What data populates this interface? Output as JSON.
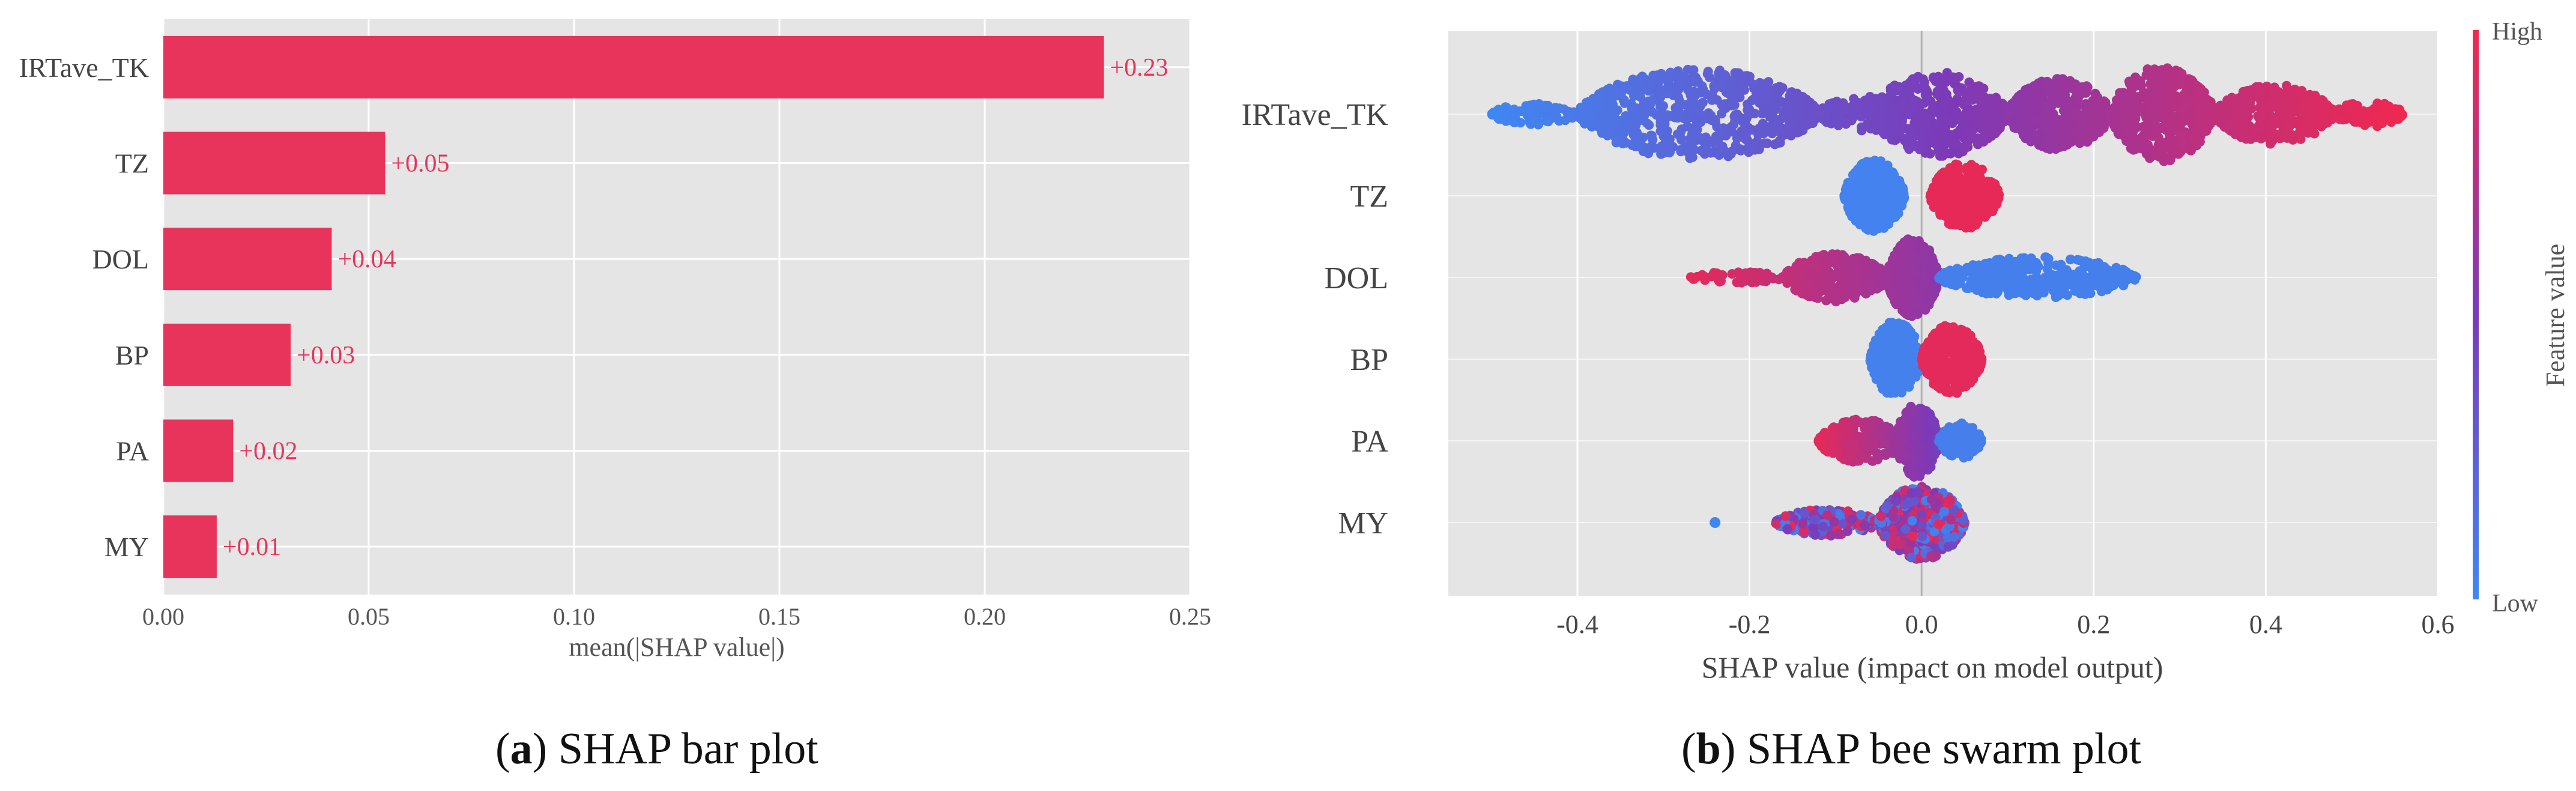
{
  "chart_data": [
    {
      "type": "bar",
      "orientation": "horizontal",
      "categories": [
        "IRTave_TK",
        "TZ",
        "DOL",
        "BP",
        "PA",
        "MY"
      ],
      "values": [
        0.229,
        0.054,
        0.041,
        0.031,
        0.017,
        0.013
      ],
      "value_labels": [
        "+0.23",
        "+0.05",
        "+0.04",
        "+0.03",
        "+0.02",
        "+0.01"
      ],
      "xlabel": "mean(|SHAP value|)",
      "ylabel": "",
      "xlim": [
        0,
        0.25
      ],
      "xticks": [
        0.0,
        0.05,
        0.1,
        0.15,
        0.2,
        0.25
      ],
      "xtick_labels": [
        "0.00",
        "0.05",
        "0.10",
        "0.15",
        "0.20",
        "0.25"
      ],
      "grid": true,
      "bar_color": "#e8345a",
      "background": "#e5e5e5",
      "caption_letter": "a",
      "caption_open": "(",
      "caption_close": ")",
      "caption_text": " SHAP bar plot"
    },
    {
      "type": "scatter",
      "subtype": "beeswarm",
      "categories": [
        "IRTave_TK",
        "TZ",
        "DOL",
        "BP",
        "PA",
        "MY"
      ],
      "xlabel": "SHAP value (impact on model output)",
      "xlim": [
        -0.55,
        0.6
      ],
      "xticks": [
        -0.4,
        -0.2,
        0.0,
        0.2,
        0.4,
        0.6
      ],
      "xtick_labels": [
        "-0.4",
        "-0.2",
        "0.0",
        "0.2",
        "0.4",
        "0.6"
      ],
      "grid": true,
      "background": "#e5e5e5",
      "colorbar": {
        "high": "High",
        "low": "Low",
        "label": "Feature value",
        "color_low": "#3f87f2",
        "color_mid": "#7c3ab8",
        "color_high": "#f0284f"
      },
      "series": [
        {
          "feature": "IRTave_TK",
          "x_range": [
            -0.5,
            0.56
          ],
          "color_trend": "low-to-high with x"
        },
        {
          "feature": "TZ",
          "x_range": [
            -0.09,
            0.09
          ],
          "color_trend": "low at negative, high at positive"
        },
        {
          "feature": "DOL",
          "x_range": [
            -0.27,
            0.25
          ],
          "color_trend": "high at negative, low at positive"
        },
        {
          "feature": "BP",
          "x_range": [
            -0.06,
            0.07
          ],
          "color_trend": "low at negative, high at positive"
        },
        {
          "feature": "PA",
          "x_range": [
            -0.12,
            0.07
          ],
          "color_trend": "high at negative, low at positive"
        },
        {
          "feature": "MY",
          "x_range": [
            -0.24,
            0.05
          ],
          "color_trend": "mixed"
        }
      ],
      "caption_letter": "b",
      "caption_open": "(",
      "caption_close": ")",
      "caption_text": " SHAP bee swarm plot"
    }
  ]
}
